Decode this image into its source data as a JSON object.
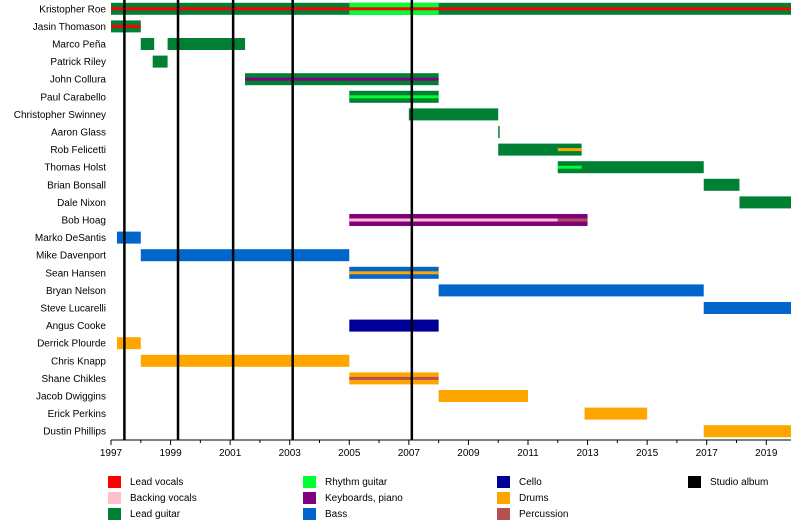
{
  "chart_data": {
    "type": "timeline",
    "title": "",
    "x_range": [
      1997,
      2019.83
    ],
    "x_ticks": [
      "1997",
      "1999",
      "2001",
      "2003",
      "2005",
      "2007",
      "2009",
      "2011",
      "2013",
      "2015",
      "2017",
      "2019"
    ],
    "members": [
      "Kristopher Roe",
      "Jasin Thomason",
      "Marco Peña",
      "Patrick Riley",
      "John Collura",
      "Paul Carabello",
      "Christopher Swinney",
      "Aaron Glass",
      "Rob Felicetti",
      "Thomas Holst",
      "Brian Bonsall",
      "Dale Nixon",
      "Bob Hoag",
      "Marko DeSantis",
      "Mike Davenport",
      "Sean Hansen",
      "Bryan Nelson",
      "Steve Lucarelli",
      "Angus Cooke",
      "Derrick Plourde",
      "Chris Knapp",
      "Shane Chikles",
      "Jacob Dwiggins",
      "Erick Perkins",
      "Dustin Phillips"
    ],
    "roles": [
      {
        "key": "lead_vocals",
        "label": "Lead vocals",
        "color": "#ff0000"
      },
      {
        "key": "backing_vocals",
        "label": "Backing vocals",
        "color": "#ffc0cb"
      },
      {
        "key": "lead_guitar",
        "label": "Lead guitar",
        "color": "#008033"
      },
      {
        "key": "rhythm_guitar",
        "label": "Rhythm guitar",
        "color": "#00ff33"
      },
      {
        "key": "keyboards",
        "label": "Keyboards, piano",
        "color": "#800080"
      },
      {
        "key": "bass",
        "label": "Bass",
        "color": "#0066cc"
      },
      {
        "key": "cello",
        "label": "Cello",
        "color": "#000099"
      },
      {
        "key": "drums",
        "label": "Drums",
        "color": "#ffa500"
      },
      {
        "key": "percussion",
        "label": "Percussion",
        "color": "#b45050"
      },
      {
        "key": "studio_album",
        "label": "Studio album",
        "color": "#000000"
      }
    ],
    "bars": [
      {
        "member": 0,
        "start": 1997.0,
        "end": 2019.83,
        "role": "lead_guitar"
      },
      {
        "member": 0,
        "start": 2005.0,
        "end": 2008.0,
        "role": "rhythm_guitar"
      },
      {
        "member": 0,
        "start": 1997.0,
        "end": 2019.83,
        "role": "lead_vocals",
        "thin": true
      },
      {
        "member": 1,
        "start": 1997.0,
        "end": 1998.0,
        "role": "lead_guitar"
      },
      {
        "member": 1,
        "start": 1997.0,
        "end": 1998.0,
        "role": "lead_vocals",
        "thin": true
      },
      {
        "member": 2,
        "start": 1998.0,
        "end": 1998.45,
        "role": "lead_guitar"
      },
      {
        "member": 2,
        "start": 1998.9,
        "end": 2001.5,
        "role": "lead_guitar"
      },
      {
        "member": 3,
        "start": 1998.4,
        "end": 1998.9,
        "role": "lead_guitar"
      },
      {
        "member": 4,
        "start": 2001.5,
        "end": 2008.0,
        "role": "lead_guitar"
      },
      {
        "member": 4,
        "start": 2001.5,
        "end": 2008.0,
        "role": "keyboards",
        "thin": true
      },
      {
        "member": 5,
        "start": 2005.0,
        "end": 2008.0,
        "role": "lead_guitar"
      },
      {
        "member": 5,
        "start": 2005.0,
        "end": 2008.0,
        "role": "rhythm_guitar",
        "thin": true
      },
      {
        "member": 6,
        "start": 2007.0,
        "end": 2010.0,
        "role": "lead_guitar"
      },
      {
        "member": 7,
        "start": 2010.0,
        "end": 2010.05,
        "role": "lead_guitar"
      },
      {
        "member": 8,
        "start": 2010.0,
        "end": 2012.8,
        "role": "lead_guitar"
      },
      {
        "member": 8,
        "start": 2012.0,
        "end": 2012.8,
        "role": "drums",
        "thin": true
      },
      {
        "member": 9,
        "start": 2012.0,
        "end": 2016.9,
        "role": "lead_guitar"
      },
      {
        "member": 9,
        "start": 2012.0,
        "end": 2012.8,
        "role": "rhythm_guitar",
        "thin": true
      },
      {
        "member": 10,
        "start": 2016.9,
        "end": 2018.1,
        "role": "lead_guitar"
      },
      {
        "member": 11,
        "start": 2018.1,
        "end": 2019.83,
        "role": "lead_guitar"
      },
      {
        "member": 12,
        "start": 2005.0,
        "end": 2013.0,
        "role": "keyboards"
      },
      {
        "member": 12,
        "start": 2005.0,
        "end": 2012.0,
        "role": "backing_vocals",
        "thin": true
      },
      {
        "member": 12,
        "start": 2012.0,
        "end": 2013.0,
        "role": "percussion",
        "thin": true
      },
      {
        "member": 13,
        "start": 1997.2,
        "end": 1998.0,
        "role": "bass"
      },
      {
        "member": 14,
        "start": 1998.0,
        "end": 2005.0,
        "role": "bass"
      },
      {
        "member": 15,
        "start": 2005.0,
        "end": 2008.0,
        "role": "bass"
      },
      {
        "member": 15,
        "start": 2005.0,
        "end": 2008.0,
        "role": "drums",
        "thin": true
      },
      {
        "member": 16,
        "start": 2008.0,
        "end": 2016.9,
        "role": "bass"
      },
      {
        "member": 17,
        "start": 2016.9,
        "end": 2019.83,
        "role": "bass"
      },
      {
        "member": 18,
        "start": 2005.0,
        "end": 2008.0,
        "role": "cello"
      },
      {
        "member": 19,
        "start": 1997.2,
        "end": 1998.0,
        "role": "drums"
      },
      {
        "member": 20,
        "start": 1998.0,
        "end": 2005.0,
        "role": "drums"
      },
      {
        "member": 21,
        "start": 2005.0,
        "end": 2008.0,
        "role": "drums"
      },
      {
        "member": 21,
        "start": 2005.0,
        "end": 2008.0,
        "role": "percussion",
        "thin": true
      },
      {
        "member": 22,
        "start": 2008.0,
        "end": 2011.0,
        "role": "drums"
      },
      {
        "member": 23,
        "start": 2012.9,
        "end": 2015.0,
        "role": "drums"
      },
      {
        "member": 24,
        "start": 2016.9,
        "end": 2019.83,
        "role": "drums"
      }
    ],
    "studio_albums": [
      1997.45,
      1999.25,
      2001.1,
      2003.1,
      2007.1
    ]
  }
}
